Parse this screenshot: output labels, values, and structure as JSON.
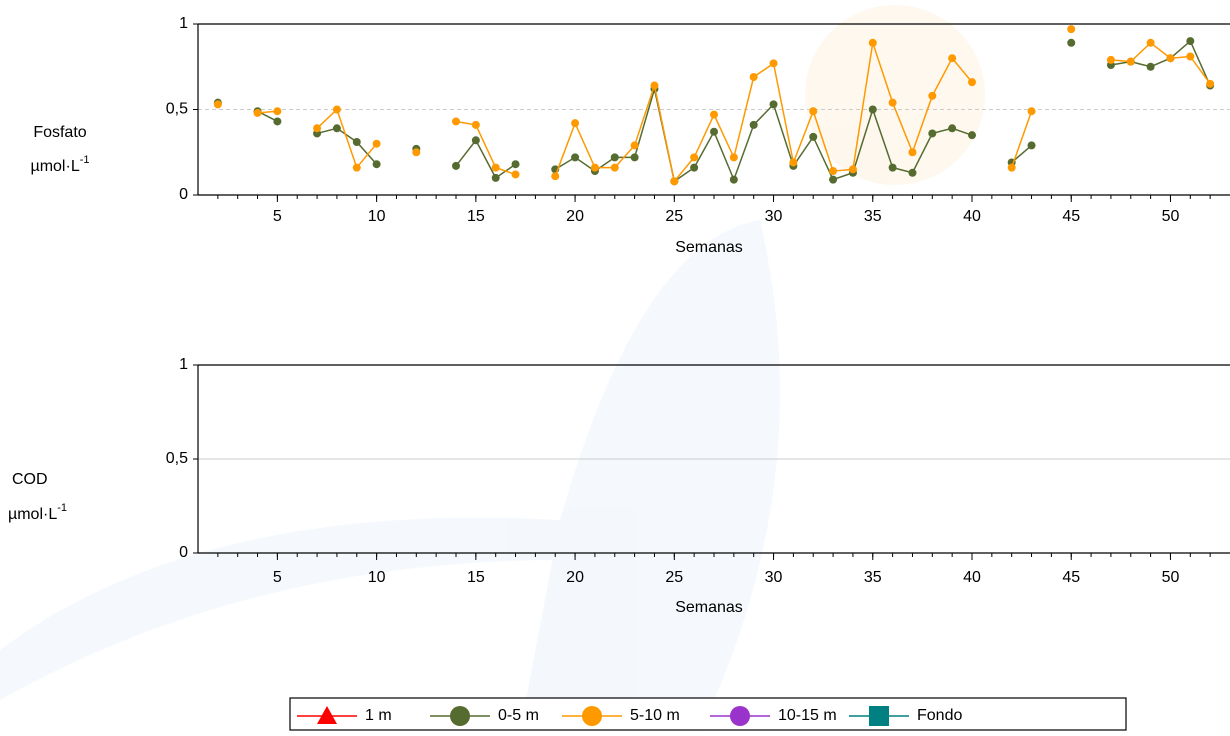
{
  "chart_data": [
    {
      "type": "line",
      "xlabel": "Semanas",
      "ylabel": {
        "name": "Fosfato",
        "unit": "µmol·L",
        "unit_power": "-1"
      },
      "x": [
        2,
        3,
        4,
        5,
        6,
        7,
        8,
        9,
        10,
        11,
        12,
        13,
        14,
        15,
        16,
        17,
        18,
        19,
        20,
        21,
        22,
        23,
        24,
        25,
        26,
        27,
        28,
        29,
        30,
        31,
        32,
        33,
        34,
        35,
        36,
        37,
        38,
        39,
        40,
        41,
        42,
        43,
        44,
        45,
        46,
        47,
        48,
        49,
        50,
        51,
        52
      ],
      "xlim": [
        1,
        53
      ],
      "xticks": [
        5,
        10,
        15,
        20,
        25,
        30,
        35,
        40,
        45,
        50
      ],
      "ylim": [
        0,
        1
      ],
      "yticks": [
        0,
        {
          "value": 0.5,
          "label": "0,5"
        },
        1
      ],
      "grid": "dashed",
      "series": [
        {
          "name": "1 m",
          "color": "#ff0000",
          "marker": "triangle",
          "values": [
            null,
            null,
            null,
            null,
            null,
            null,
            null,
            null,
            null,
            null,
            null,
            null,
            null,
            null,
            null,
            null,
            null,
            null,
            null,
            null,
            null,
            null,
            null,
            null,
            null,
            null,
            null,
            null,
            null,
            null,
            null,
            null,
            null,
            null,
            null,
            null,
            null,
            null,
            null,
            null,
            null,
            null,
            null,
            null,
            null,
            null,
            null,
            null,
            null,
            null,
            null
          ]
        },
        {
          "name": "0-5 m",
          "color": "#556b2f",
          "marker": "circle",
          "values": [
            0.54,
            null,
            0.49,
            0.43,
            null,
            0.36,
            0.39,
            0.31,
            0.18,
            null,
            0.27,
            null,
            0.17,
            0.32,
            0.1,
            0.18,
            null,
            0.15,
            0.22,
            0.14,
            0.22,
            0.22,
            0.62,
            0.08,
            0.16,
            0.37,
            0.09,
            0.41,
            0.53,
            0.17,
            0.34,
            0.09,
            0.13,
            0.5,
            0.16,
            0.13,
            0.36,
            0.39,
            0.35,
            null,
            0.19,
            0.29,
            null,
            0.89,
            null,
            0.76,
            0.78,
            0.75,
            0.8,
            0.9,
            0.64
          ]
        },
        {
          "name": "5-10 m",
          "color": "#ff9900",
          "marker": "circle",
          "values": [
            0.53,
            null,
            0.48,
            0.49,
            null,
            0.39,
            0.5,
            0.16,
            0.3,
            null,
            0.25,
            null,
            0.43,
            0.41,
            0.16,
            0.12,
            null,
            0.11,
            0.42,
            0.16,
            0.16,
            0.29,
            0.64,
            0.08,
            0.22,
            0.47,
            0.22,
            0.69,
            0.77,
            0.19,
            0.49,
            0.14,
            0.15,
            0.89,
            0.54,
            0.25,
            0.58,
            0.8,
            0.66,
            null,
            0.16,
            0.49,
            null,
            0.97,
            null,
            0.79,
            0.78,
            0.89,
            0.8,
            0.81,
            0.65
          ]
        },
        {
          "name": "10-15 m",
          "color": "#9933cc",
          "marker": "circle",
          "values": [
            null,
            null,
            null,
            null,
            null,
            null,
            null,
            null,
            null,
            null,
            null,
            null,
            null,
            null,
            null,
            null,
            null,
            null,
            null,
            null,
            null,
            null,
            null,
            null,
            null,
            null,
            null,
            null,
            null,
            null,
            null,
            null,
            null,
            null,
            null,
            null,
            null,
            null,
            null,
            null,
            null,
            null,
            null,
            null,
            null,
            null,
            null,
            null,
            null,
            null,
            null
          ]
        },
        {
          "name": "Fondo",
          "color": "#008080",
          "marker": "square",
          "values": [
            null,
            null,
            null,
            null,
            null,
            null,
            null,
            null,
            null,
            null,
            null,
            null,
            null,
            null,
            null,
            null,
            null,
            null,
            null,
            null,
            null,
            null,
            null,
            null,
            null,
            null,
            null,
            null,
            null,
            null,
            null,
            null,
            null,
            null,
            null,
            null,
            null,
            null,
            null,
            null,
            null,
            null,
            null,
            null,
            null,
            null,
            null,
            null,
            null,
            null,
            null
          ]
        }
      ]
    },
    {
      "type": "line",
      "xlabel": "Semanas",
      "ylabel": {
        "name": "COD",
        "unit": "µmol·L",
        "unit_power": "-1"
      },
      "xlim": [
        1,
        53
      ],
      "xticks": [
        5,
        10,
        15,
        20,
        25,
        30,
        35,
        40,
        45,
        50
      ],
      "ylim": [
        0,
        1
      ],
      "yticks": [
        0,
        {
          "value": 0.5,
          "label": "0,5"
        },
        1
      ],
      "grid": "solid"
    }
  ]
}
